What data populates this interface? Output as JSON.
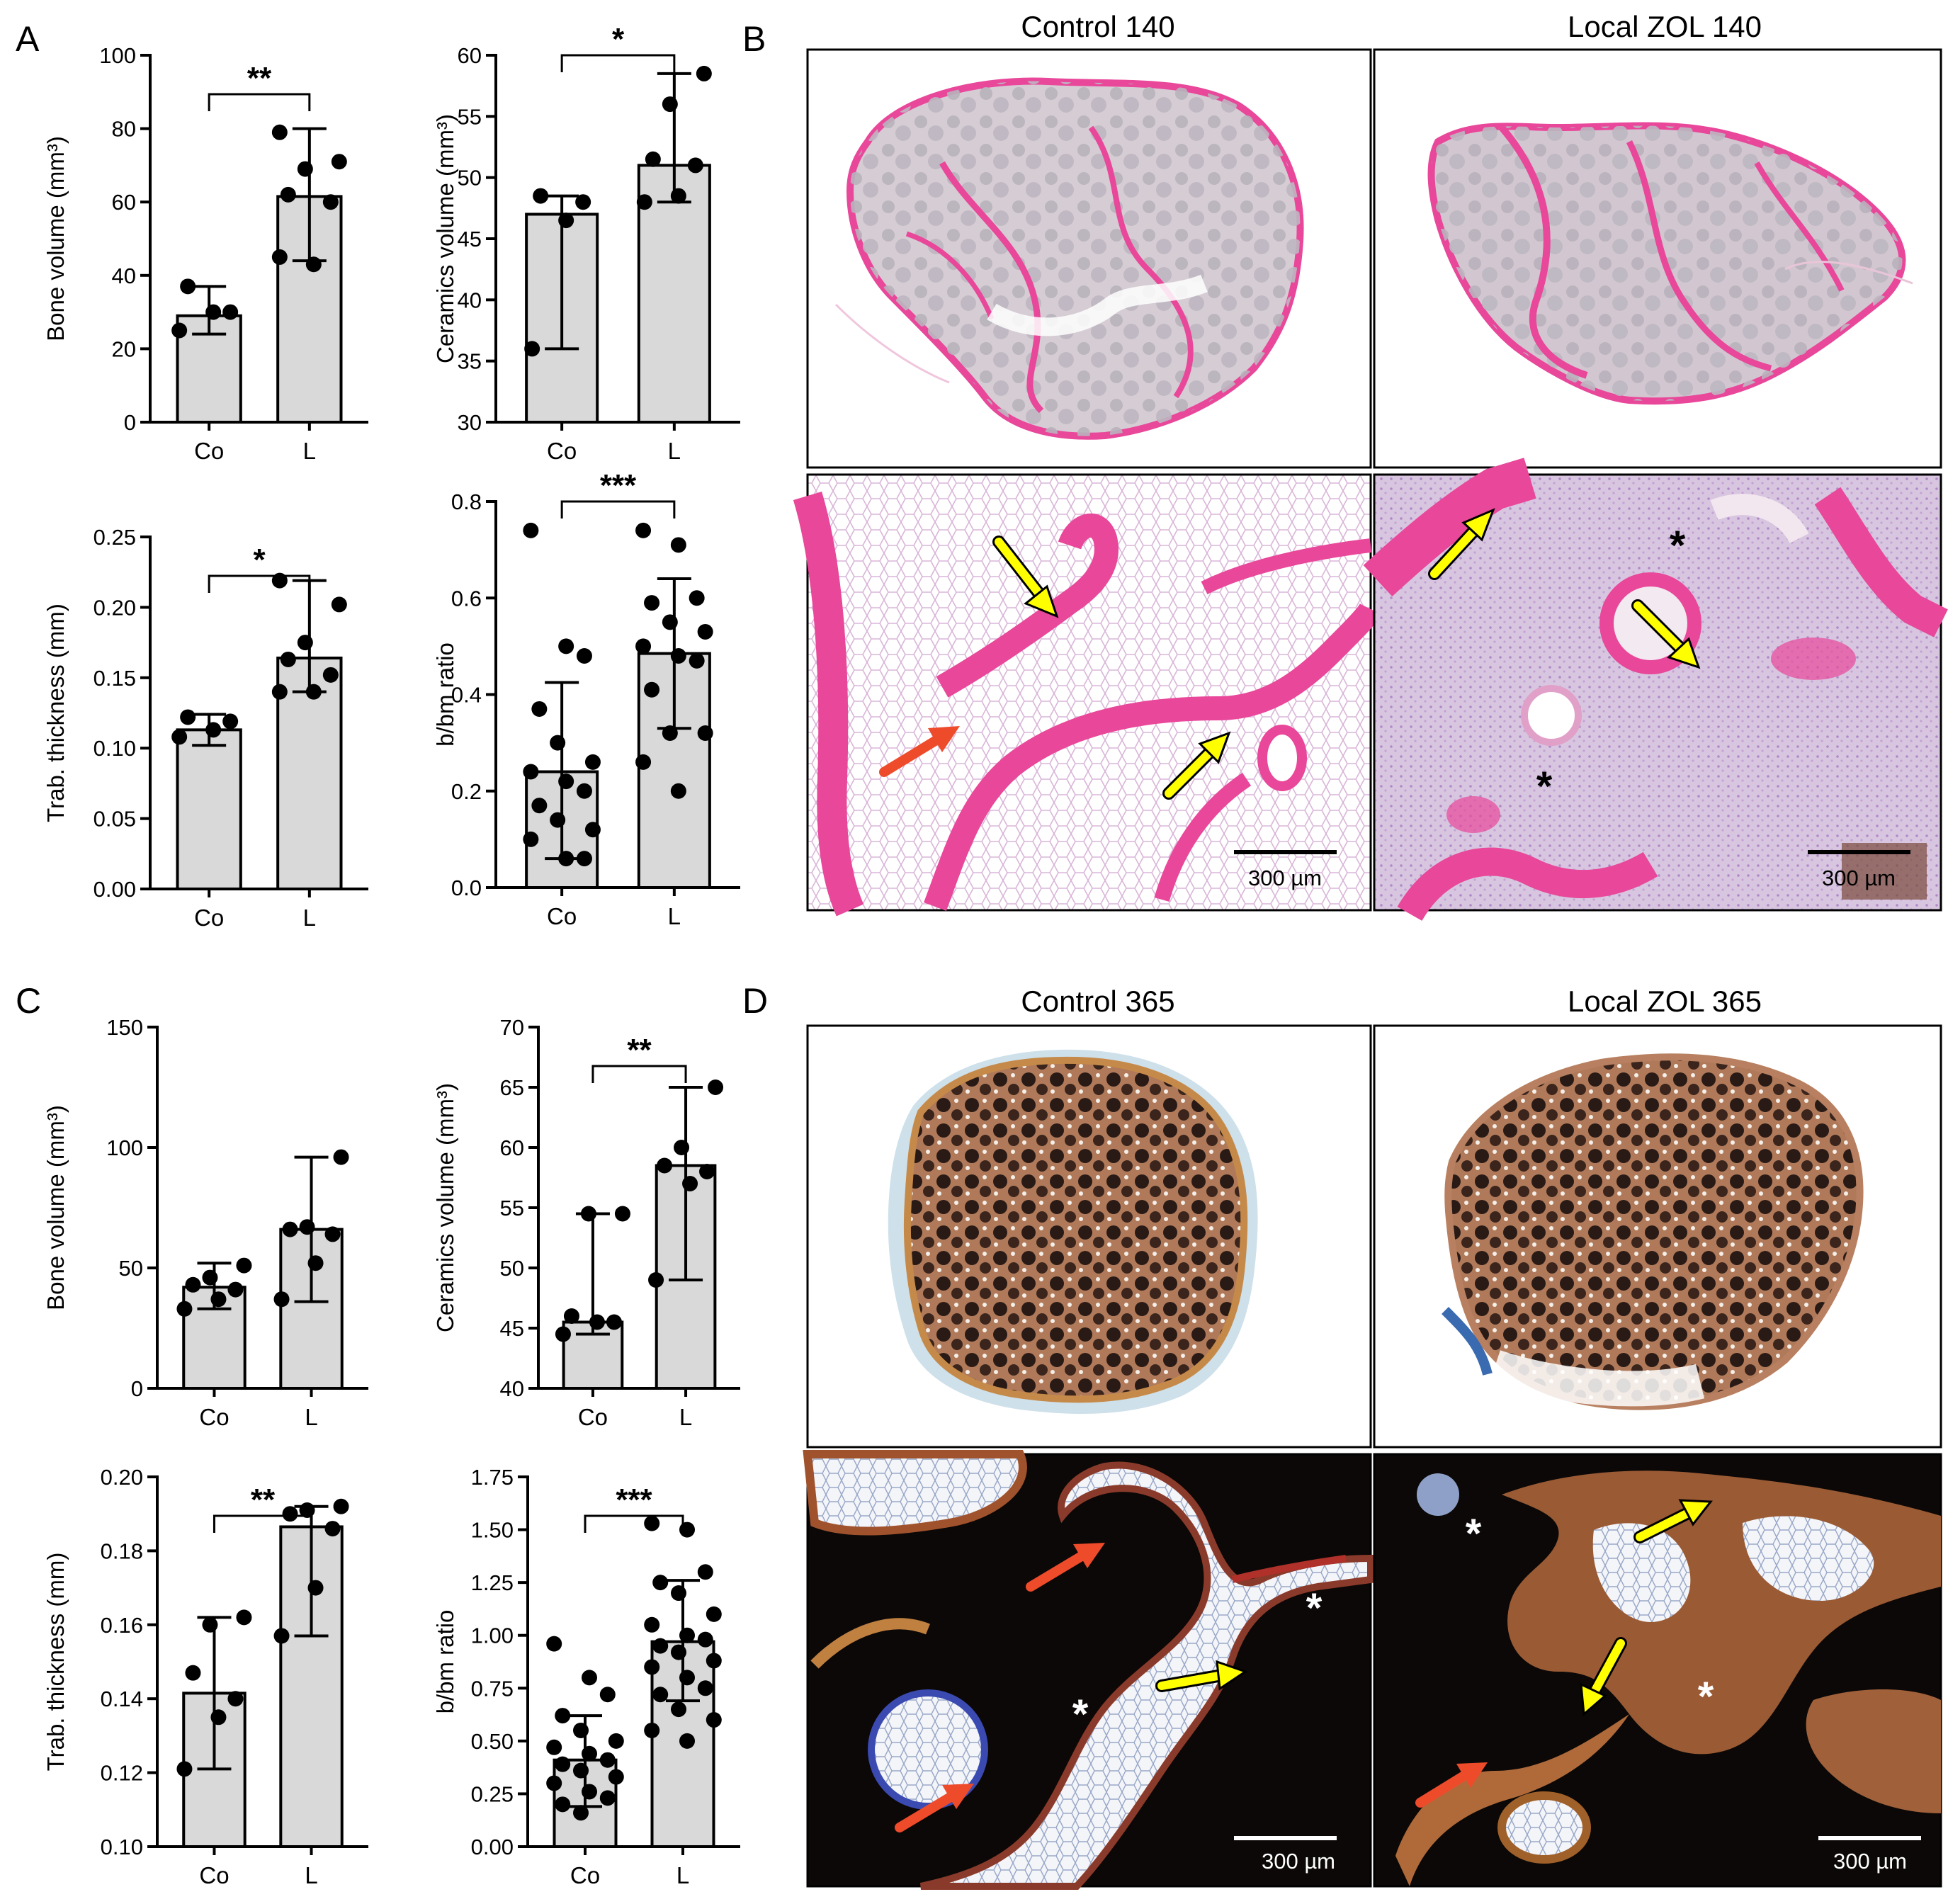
{
  "panel_labels": [
    "A",
    "B",
    "C",
    "D"
  ],
  "chart_data": [
    {
      "id": "A1",
      "type": "bar",
      "title": "",
      "ylabel": "Bone volume (mm³)",
      "ylim": [
        0,
        100
      ],
      "yticks": [
        "0",
        "20",
        "40",
        "60",
        "80",
        "100"
      ],
      "categories": [
        "Co",
        "L"
      ],
      "means": [
        29,
        61.5
      ],
      "errors": [
        [
          24,
          37
        ],
        [
          44,
          80
        ]
      ],
      "points": [
        [
          25,
          30,
          30,
          37
        ],
        [
          45,
          43,
          60,
          62,
          69,
          71,
          79
        ]
      ],
      "significance": "**"
    },
    {
      "id": "A2",
      "type": "bar",
      "title": "",
      "ylabel": "Ceramics volume (mm³)",
      "ylim": [
        30,
        60
      ],
      "yticks": [
        "30",
        "35",
        "40",
        "45",
        "50",
        "55",
        "60"
      ],
      "categories": [
        "Co",
        "L"
      ],
      "means": [
        47,
        51
      ],
      "errors": [
        [
          36,
          48.5
        ],
        [
          48,
          58.5
        ]
      ],
      "points": [
        [
          36,
          46.5,
          48,
          48.5
        ],
        [
          48,
          48.5,
          51,
          51.5,
          56,
          58.5
        ]
      ],
      "significance": "*"
    },
    {
      "id": "A3",
      "type": "bar",
      "title": "",
      "ylabel": "Trab. thickness (mm)",
      "ylim": [
        0,
        0.25
      ],
      "yticks": [
        "0.00",
        "0.05",
        "0.10",
        "0.15",
        "0.20",
        "0.25"
      ],
      "categories": [
        "Co",
        "L"
      ],
      "means": [
        0.113,
        0.164
      ],
      "errors": [
        [
          0.102,
          0.124
        ],
        [
          0.14,
          0.219
        ]
      ],
      "points": [
        [
          0.108,
          0.113,
          0.119,
          0.122
        ],
        [
          0.14,
          0.14,
          0.152,
          0.163,
          0.175,
          0.202,
          0.219
        ]
      ],
      "significance": "*"
    },
    {
      "id": "A4",
      "type": "bar",
      "title": "",
      "ylabel": "b/bm ratio",
      "ylim": [
        0,
        0.8
      ],
      "yticks": [
        "0.0",
        "0.2",
        "0.4",
        "0.6",
        "0.8"
      ],
      "categories": [
        "Co",
        "L"
      ],
      "means": [
        0.24,
        0.485
      ],
      "errors": [
        [
          0.06,
          0.425
        ],
        [
          0.33,
          0.64
        ]
      ],
      "points": [
        [
          0.74,
          0.5,
          0.48,
          0.37,
          0.3,
          0.26,
          0.24,
          0.22,
          0.2,
          0.17,
          0.14,
          0.12,
          0.1,
          0.06,
          0.06
        ],
        [
          0.74,
          0.71,
          0.6,
          0.59,
          0.55,
          0.53,
          0.5,
          0.48,
          0.47,
          0.41,
          0.32,
          0.32,
          0.26,
          0.2
        ]
      ],
      "significance": "***"
    },
    {
      "id": "C1",
      "type": "bar",
      "title": "",
      "ylabel": "Bone volume (mm³)",
      "ylim": [
        0,
        150
      ],
      "yticks": [
        "0",
        "50",
        "100",
        "150"
      ],
      "categories": [
        "Co",
        "L"
      ],
      "means": [
        42,
        66
      ],
      "errors": [
        [
          33,
          52
        ],
        [
          36,
          96
        ]
      ],
      "points": [
        [
          33,
          37,
          41,
          43,
          46,
          51
        ],
        [
          37,
          52,
          64,
          66,
          67,
          96
        ]
      ],
      "significance": ""
    },
    {
      "id": "C2",
      "type": "bar",
      "title": "",
      "ylabel": "Ceramics volume (mm³)",
      "ylim": [
        40,
        70
      ],
      "yticks": [
        "40",
        "45",
        "50",
        "55",
        "60",
        "65",
        "70"
      ],
      "categories": [
        "Co",
        "L"
      ],
      "means": [
        45.5,
        58.5
      ],
      "errors": [
        [
          44.5,
          54.5
        ],
        [
          49,
          65
        ]
      ],
      "points": [
        [
          44.5,
          45.5,
          45.5,
          46,
          54.5,
          54.5
        ],
        [
          49,
          57,
          58,
          58.5,
          60,
          65
        ]
      ],
      "significance": "**"
    },
    {
      "id": "C3",
      "type": "bar",
      "title": "",
      "ylabel": "Trab. thickness (mm)",
      "ylim": [
        0.1,
        0.2
      ],
      "yticks": [
        "0.10",
        "0.12",
        "0.14",
        "0.16",
        "0.18",
        "0.20"
      ],
      "categories": [
        "Co",
        "L"
      ],
      "means": [
        0.1415,
        0.1865
      ],
      "errors": [
        [
          0.121,
          0.162
        ],
        [
          0.157,
          0.192
        ]
      ],
      "points": [
        [
          0.121,
          0.135,
          0.14,
          0.147,
          0.16,
          0.162
        ],
        [
          0.157,
          0.17,
          0.186,
          0.19,
          0.191,
          0.192
        ]
      ],
      "significance": "**"
    },
    {
      "id": "C4",
      "type": "bar",
      "title": "",
      "ylabel": "b/bm ratio",
      "ylim": [
        0,
        1.75
      ],
      "yticks": [
        "0.00",
        "0.25",
        "0.50",
        "0.75",
        "1.00",
        "1.25",
        "1.50",
        "1.75"
      ],
      "categories": [
        "Co",
        "L"
      ],
      "means": [
        0.41,
        0.97
      ],
      "errors": [
        [
          0.19,
          0.62
        ],
        [
          0.69,
          1.26
        ]
      ],
      "points": [
        [
          0.96,
          0.8,
          0.72,
          0.62,
          0.55,
          0.5,
          0.47,
          0.44,
          0.41,
          0.39,
          0.36,
          0.33,
          0.3,
          0.26,
          0.23,
          0.2,
          0.16
        ],
        [
          1.53,
          1.5,
          1.3,
          1.25,
          1.2,
          1.1,
          1.05,
          1.0,
          0.98,
          0.95,
          0.92,
          0.88,
          0.85,
          0.8,
          0.75,
          0.72,
          0.65,
          0.6,
          0.55,
          0.5
        ]
      ],
      "significance": "***"
    }
  ],
  "micrographs": {
    "B": {
      "titles": [
        "Control 140",
        "Local ZOL 140"
      ],
      "scale_bar": "300 µm"
    },
    "D": {
      "titles": [
        "Control 365",
        "Local ZOL 365"
      ],
      "scale_bar": "300 µm"
    }
  },
  "colors": {
    "bar_fill": "#d9d9d9",
    "he_pink": "#e8479a",
    "he_gray": "#b9b3bd",
    "arrow_yellow": "#ffff00",
    "arrow_red": "#ee4b2b",
    "stain_dark": "#1e1210",
    "stain_brown": "#8a4a2a"
  }
}
